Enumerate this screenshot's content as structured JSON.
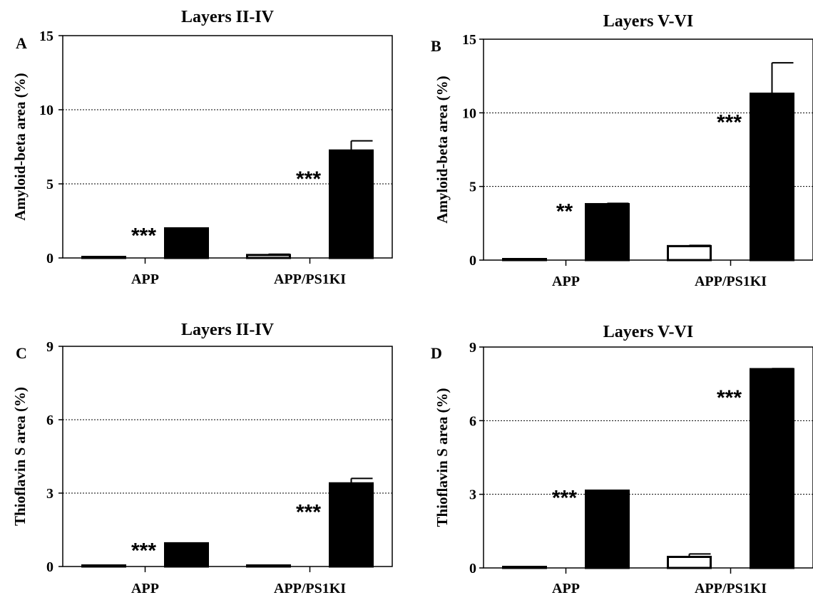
{
  "chart_data": [
    {
      "panel_letter": "A",
      "type": "bar",
      "title": "Layers II-IV",
      "ylabel": "Amyloid-beta area (%)",
      "xlabel": "",
      "categories": [
        "APP",
        "APP/PS1KI"
      ],
      "ylim": [
        0,
        15
      ],
      "yticks": [
        "0",
        "5",
        "10",
        "15"
      ],
      "grid": "dotted horizontal",
      "series": [
        {
          "fill": "#ffffff",
          "values": [
            0.0,
            0.2
          ],
          "errors": [
            0.0,
            0.05
          ]
        },
        {
          "fill": "#000000",
          "values": [
            2.0,
            7.25
          ],
          "errors": [
            0.0,
            0.65
          ]
        }
      ],
      "annotations": [
        "***",
        "***"
      ]
    },
    {
      "panel_letter": "B",
      "type": "bar",
      "title": "Layers V-VI",
      "ylabel": "Amyloid-beta area (%)",
      "xlabel": "",
      "categories": [
        "APP",
        "APP/PS1KI"
      ],
      "ylim": [
        0,
        15
      ],
      "yticks": [
        "0",
        "5",
        "10",
        "15"
      ],
      "grid": "dotted horizontal",
      "series": [
        {
          "fill": "#ffffff",
          "values": [
            0.0,
            0.95
          ],
          "errors": [
            0.0,
            0.05
          ]
        },
        {
          "fill": "#000000",
          "values": [
            3.8,
            11.3
          ],
          "errors": [
            0.05,
            2.1
          ]
        }
      ],
      "annotations": [
        "**",
        "***"
      ]
    },
    {
      "panel_letter": "C",
      "type": "bar",
      "title": "Layers II-IV",
      "ylabel": "Thioflavin S area (%)",
      "xlabel": "",
      "categories": [
        "APP",
        "APP/PS1KI"
      ],
      "ylim": [
        0,
        9
      ],
      "yticks": [
        "0",
        "3",
        "6",
        "9"
      ],
      "grid": "dotted horizontal",
      "series": [
        {
          "fill": "#ffffff",
          "values": [
            0.0,
            0.02
          ],
          "errors": [
            0.0,
            0.0
          ]
        },
        {
          "fill": "#000000",
          "values": [
            0.95,
            3.4
          ],
          "errors": [
            0.0,
            0.2
          ]
        }
      ],
      "annotations": [
        "***",
        "***"
      ]
    },
    {
      "panel_letter": "D",
      "type": "bar",
      "title": "Layers V-VI",
      "ylabel": "Thioflavin S area (%)",
      "xlabel": "",
      "categories": [
        "APP",
        "APP/PS1KI"
      ],
      "ylim": [
        0,
        9
      ],
      "yticks": [
        "0",
        "3",
        "6",
        "9"
      ],
      "grid": "dotted horizontal",
      "series": [
        {
          "fill": "#ffffff",
          "values": [
            0.0,
            0.45
          ],
          "errors": [
            0.0,
            0.12
          ]
        },
        {
          "fill": "#000000",
          "values": [
            3.15,
            8.1
          ],
          "errors": [
            0.0,
            0.02
          ]
        }
      ],
      "annotations": [
        "***",
        "***"
      ]
    }
  ]
}
